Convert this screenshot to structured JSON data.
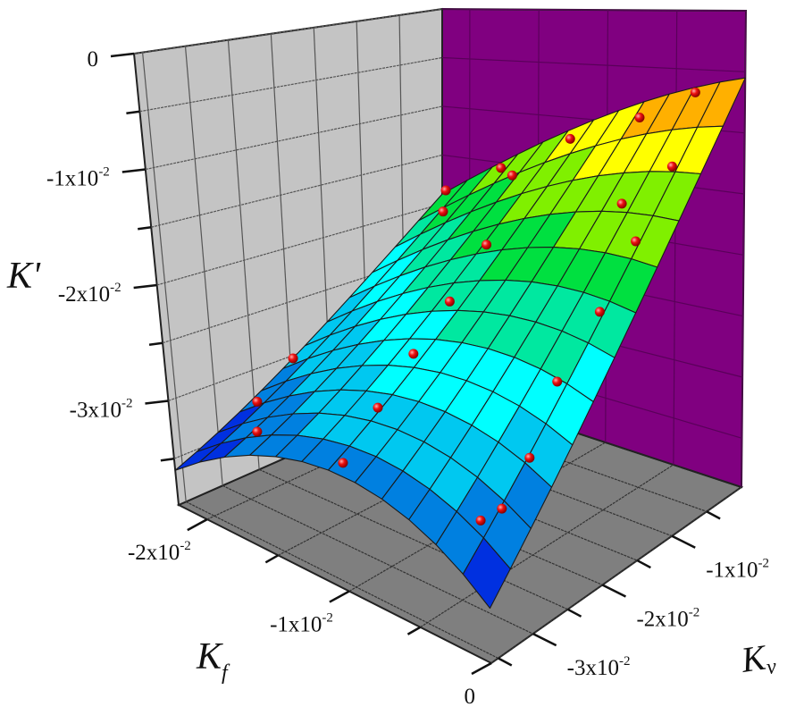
{
  "chart_data": {
    "type": "surface3d",
    "title": "",
    "value_scale": "x10^-2",
    "axes": {
      "z": {
        "label": "K'",
        "range": [
          -3.9,
          0
        ],
        "ticks": [
          0,
          -1,
          -2,
          -3
        ],
        "minor_ticks": [
          -0.5,
          -1.5,
          -2.5,
          -3.5
        ],
        "tick_labels": [
          {
            "m": "0",
            "e": ""
          },
          {
            "m": "-1x10",
            "e": "-2"
          },
          {
            "m": "-2x10",
            "e": "-2"
          },
          {
            "m": "-3x10",
            "e": "-2"
          }
        ]
      },
      "x": {
        "label": "K",
        "sub": "f",
        "range": [
          -2.2,
          0
        ],
        "ticks": [
          -2,
          -1,
          0
        ],
        "minor_ticks": [
          -1.5,
          -0.5
        ],
        "tick_labels": [
          {
            "m": "-2x10",
            "e": "-2"
          },
          {
            "m": "-1x10",
            "e": "-2"
          },
          {
            "m": "0",
            "e": ""
          }
        ]
      },
      "y": {
        "label": "K",
        "sub": "v",
        "range": [
          -3.6,
          0
        ],
        "ticks": [
          -3,
          -2,
          -1
        ],
        "minor_ticks": [
          -3.5,
          -2.5,
          -1.5,
          -0.5
        ],
        "tick_labels": [
          {
            "m": "-3x10",
            "e": "-2"
          },
          {
            "m": "-2x10",
            "e": "-2"
          },
          {
            "m": "-1x10",
            "e": "-2"
          }
        ]
      }
    },
    "surface": {
      "grid": [
        12,
        12
      ],
      "corner_values": {
        "kf_min_kv_min": -3.6,
        "kf_max_kv_min": -3.5,
        "kf_min_kv_max": -1.9,
        "kf_max_kv_max": -0.55
      },
      "curvature_kf": 0.55,
      "curvature_kv": -0.2,
      "colormap": [
        "#0030e0",
        "#0080e0",
        "#00c8f0",
        "#00ffff",
        "#00e8a0",
        "#00e040",
        "#80f000",
        "#ffff00",
        "#ffb000",
        "#ff6000"
      ]
    },
    "points": [
      [
        -2.0,
        -0.3,
        -1.75
      ],
      [
        -1.6,
        -0.3,
        -1.45
      ],
      [
        -1.1,
        -0.3,
        -1.1
      ],
      [
        -0.6,
        -0.3,
        -0.85
      ],
      [
        -0.2,
        -0.3,
        -0.6
      ],
      [
        -1.85,
        -0.6,
        -1.85
      ],
      [
        -1.35,
        -0.6,
        -1.4
      ],
      [
        -0.1,
        -0.8,
        -1.05
      ],
      [
        -0.3,
        -1.1,
        -1.3
      ],
      [
        -0.1,
        -1.3,
        -1.5
      ],
      [
        -0.1,
        -1.8,
        -1.9
      ],
      [
        -0.15,
        -2.3,
        -2.3
      ],
      [
        -0.1,
        -2.8,
        -2.7
      ],
      [
        -0.1,
        -3.2,
        -2.95
      ],
      [
        -0.2,
        -3.3,
        -3.05
      ],
      [
        -1.1,
        -3.4,
        -3.0
      ],
      [
        -1.1,
        -2.9,
        -2.7
      ],
      [
        -1.1,
        -2.4,
        -2.4
      ],
      [
        -1.1,
        -1.9,
        -2.1
      ],
      [
        -1.1,
        -1.4,
        -1.75
      ],
      [
        -1.9,
        -2.5,
        -2.75
      ],
      [
        -1.9,
        -3.0,
        -3.0
      ],
      [
        -1.75,
        -3.3,
        -3.1
      ]
    ],
    "point_color": "#ee1111",
    "colors": {
      "left_wall": "#c4c4c4",
      "back_wall": "#800080",
      "floor": "#7f7f7f"
    },
    "grid": true
  }
}
